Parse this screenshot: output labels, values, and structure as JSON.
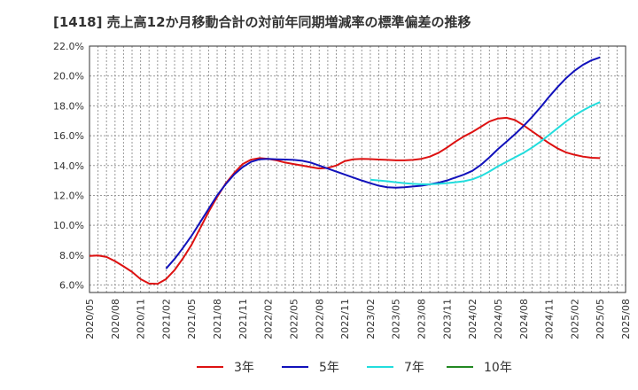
{
  "chart_data": {
    "type": "line",
    "title": "[1418]  売上高12か月移動合計の対前年同期増減率の標準偏差の推移",
    "xlabel": "",
    "ylabel": "",
    "ylim": [
      5.5,
      22.0
    ],
    "yticks": [
      6.0,
      8.0,
      10.0,
      12.0,
      14.0,
      16.0,
      18.0,
      20.0,
      22.0
    ],
    "ytick_labels": [
      "6.0%",
      "8.0%",
      "10.0%",
      "12.0%",
      "14.0%",
      "16.0%",
      "18.0%",
      "20.0%",
      "22.0%"
    ],
    "xticks": [
      "2020/05",
      "2020/08",
      "2020/11",
      "2021/02",
      "2021/05",
      "2021/08",
      "2021/11",
      "2022/02",
      "2022/05",
      "2022/08",
      "2022/11",
      "2023/02",
      "2023/05",
      "2023/08",
      "2023/11",
      "2024/02",
      "2024/05",
      "2024/08",
      "2024/11",
      "2025/02",
      "2025/05",
      "2025/08"
    ],
    "x_start": "2020/05",
    "grid": true,
    "legend_position": "bottom",
    "series": [
      {
        "name": "3年",
        "color": "#dd1111",
        "points": [
          [
            "2020/05",
            7.95
          ],
          [
            "2020/06",
            7.98
          ],
          [
            "2020/07",
            7.88
          ],
          [
            "2020/08",
            7.6
          ],
          [
            "2020/09",
            7.25
          ],
          [
            "2020/10",
            6.88
          ],
          [
            "2020/11",
            6.4
          ],
          [
            "2020/12",
            6.1
          ],
          [
            "2021/01",
            6.08
          ],
          [
            "2021/02",
            6.4
          ],
          [
            "2021/03",
            7.0
          ],
          [
            "2021/04",
            7.8
          ],
          [
            "2021/05",
            8.7
          ],
          [
            "2021/06",
            9.8
          ],
          [
            "2021/07",
            10.9
          ],
          [
            "2021/08",
            11.9
          ],
          [
            "2021/09",
            12.8
          ],
          [
            "2021/10",
            13.5
          ],
          [
            "2021/11",
            14.1
          ],
          [
            "2021/12",
            14.4
          ],
          [
            "2022/01",
            14.5
          ],
          [
            "2022/02",
            14.45
          ],
          [
            "2022/03",
            14.35
          ],
          [
            "2022/04",
            14.2
          ],
          [
            "2022/05",
            14.1
          ],
          [
            "2022/06",
            14.0
          ],
          [
            "2022/07",
            13.9
          ],
          [
            "2022/08",
            13.8
          ],
          [
            "2022/09",
            13.85
          ],
          [
            "2022/10",
            14.0
          ],
          [
            "2022/11",
            14.3
          ],
          [
            "2022/12",
            14.42
          ],
          [
            "2023/01",
            14.45
          ],
          [
            "2023/02",
            14.43
          ],
          [
            "2023/03",
            14.4
          ],
          [
            "2023/04",
            14.38
          ],
          [
            "2023/05",
            14.35
          ],
          [
            "2023/06",
            14.35
          ],
          [
            "2023/07",
            14.38
          ],
          [
            "2023/08",
            14.45
          ],
          [
            "2023/09",
            14.6
          ],
          [
            "2023/10",
            14.85
          ],
          [
            "2023/11",
            15.2
          ],
          [
            "2023/12",
            15.6
          ],
          [
            "2024/01",
            15.95
          ],
          [
            "2024/02",
            16.25
          ],
          [
            "2024/03",
            16.6
          ],
          [
            "2024/04",
            16.95
          ],
          [
            "2024/05",
            17.15
          ],
          [
            "2024/06",
            17.2
          ],
          [
            "2024/07",
            17.05
          ],
          [
            "2024/08",
            16.7
          ],
          [
            "2024/09",
            16.3
          ],
          [
            "2024/10",
            15.9
          ],
          [
            "2024/11",
            15.5
          ],
          [
            "2024/12",
            15.15
          ],
          [
            "2025/01",
            14.88
          ],
          [
            "2025/02",
            14.72
          ],
          [
            "2025/03",
            14.6
          ],
          [
            "2025/04",
            14.52
          ],
          [
            "2025/05",
            14.5
          ]
        ]
      },
      {
        "name": "5年",
        "color": "#1111bb",
        "points": [
          [
            "2021/02",
            7.1
          ],
          [
            "2021/03",
            7.75
          ],
          [
            "2021/04",
            8.5
          ],
          [
            "2021/05",
            9.3
          ],
          [
            "2021/06",
            10.2
          ],
          [
            "2021/07",
            11.1
          ],
          [
            "2021/08",
            12.0
          ],
          [
            "2021/09",
            12.75
          ],
          [
            "2021/10",
            13.4
          ],
          [
            "2021/11",
            13.9
          ],
          [
            "2021/12",
            14.25
          ],
          [
            "2022/01",
            14.42
          ],
          [
            "2022/02",
            14.45
          ],
          [
            "2022/03",
            14.42
          ],
          [
            "2022/04",
            14.4
          ],
          [
            "2022/05",
            14.38
          ],
          [
            "2022/06",
            14.32
          ],
          [
            "2022/07",
            14.2
          ],
          [
            "2022/08",
            14.0
          ],
          [
            "2022/09",
            13.8
          ],
          [
            "2022/10",
            13.6
          ],
          [
            "2022/11",
            13.4
          ],
          [
            "2022/12",
            13.2
          ],
          [
            "2023/01",
            13.0
          ],
          [
            "2023/02",
            12.82
          ],
          [
            "2023/03",
            12.65
          ],
          [
            "2023/04",
            12.55
          ],
          [
            "2023/05",
            12.52
          ],
          [
            "2023/06",
            12.55
          ],
          [
            "2023/07",
            12.6
          ],
          [
            "2023/08",
            12.65
          ],
          [
            "2023/09",
            12.75
          ],
          [
            "2023/10",
            12.85
          ],
          [
            "2023/11",
            13.0
          ],
          [
            "2023/12",
            13.2
          ],
          [
            "2024/01",
            13.4
          ],
          [
            "2024/02",
            13.65
          ],
          [
            "2024/03",
            14.05
          ],
          [
            "2024/04",
            14.55
          ],
          [
            "2024/05",
            15.1
          ],
          [
            "2024/06",
            15.6
          ],
          [
            "2024/07",
            16.1
          ],
          [
            "2024/08",
            16.65
          ],
          [
            "2024/09",
            17.25
          ],
          [
            "2024/10",
            17.9
          ],
          [
            "2024/11",
            18.6
          ],
          [
            "2024/12",
            19.25
          ],
          [
            "2025/01",
            19.85
          ],
          [
            "2025/02",
            20.35
          ],
          [
            "2025/03",
            20.75
          ],
          [
            "2025/04",
            21.05
          ],
          [
            "2025/05",
            21.25
          ]
        ]
      },
      {
        "name": "7年",
        "color": "#22dddd",
        "points": [
          [
            "2023/02",
            13.05
          ],
          [
            "2023/03",
            13.0
          ],
          [
            "2023/04",
            12.95
          ],
          [
            "2023/05",
            12.88
          ],
          [
            "2023/06",
            12.82
          ],
          [
            "2023/07",
            12.78
          ],
          [
            "2023/08",
            12.75
          ],
          [
            "2023/09",
            12.75
          ],
          [
            "2023/10",
            12.78
          ],
          [
            "2023/11",
            12.82
          ],
          [
            "2023/12",
            12.88
          ],
          [
            "2024/01",
            12.95
          ],
          [
            "2024/02",
            13.08
          ],
          [
            "2024/03",
            13.3
          ],
          [
            "2024/04",
            13.6
          ],
          [
            "2024/05",
            13.95
          ],
          [
            "2024/06",
            14.25
          ],
          [
            "2024/07",
            14.55
          ],
          [
            "2024/08",
            14.85
          ],
          [
            "2024/09",
            15.2
          ],
          [
            "2024/10",
            15.6
          ],
          [
            "2024/11",
            16.05
          ],
          [
            "2024/12",
            16.5
          ],
          [
            "2025/01",
            16.95
          ],
          [
            "2025/02",
            17.35
          ],
          [
            "2025/03",
            17.7
          ],
          [
            "2025/04",
            18.0
          ],
          [
            "2025/05",
            18.25
          ]
        ]
      },
      {
        "name": "10年",
        "color": "#228822",
        "points": []
      }
    ]
  }
}
